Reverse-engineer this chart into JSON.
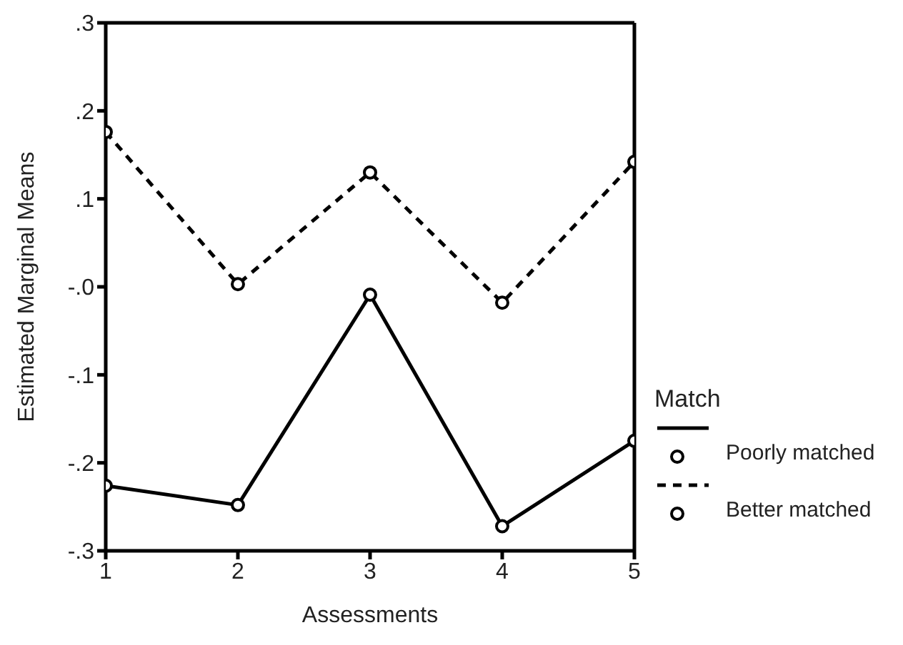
{
  "chart_data": {
    "type": "line",
    "xlabel": "Assessments",
    "ylabel": "Estimated Marginal Means",
    "legend_title": "Match",
    "x": [
      1,
      2,
      3,
      4,
      5
    ],
    "xlim": [
      1,
      5
    ],
    "xticks": [
      1,
      2,
      3,
      4,
      5
    ],
    "ylim": [
      -0.3,
      0.3
    ],
    "yticks": [
      {
        "value": -0.3,
        "label": "-.3"
      },
      {
        "value": -0.2,
        "label": "-.2"
      },
      {
        "value": -0.1,
        "label": "-.1"
      },
      {
        "value": 0,
        "label": "-.0"
      },
      {
        "value": 0.1,
        "label": ".1"
      },
      {
        "value": 0.2,
        "label": ".2"
      },
      {
        "value": 0.3,
        "label": ".3"
      }
    ],
    "series": [
      {
        "name": "Poorly matched",
        "color": "#000000",
        "line_style": "solid",
        "values": [
          -0.226,
          -0.248,
          -0.009,
          -0.272,
          -0.175
        ]
      },
      {
        "name": "Better matched",
        "color": "#000000",
        "line_style": "dashed",
        "values": [
          0.176,
          0.003,
          0.13,
          -0.018,
          0.142
        ]
      }
    ],
    "marker": "circle",
    "grid": false,
    "legend": "bottom right"
  }
}
